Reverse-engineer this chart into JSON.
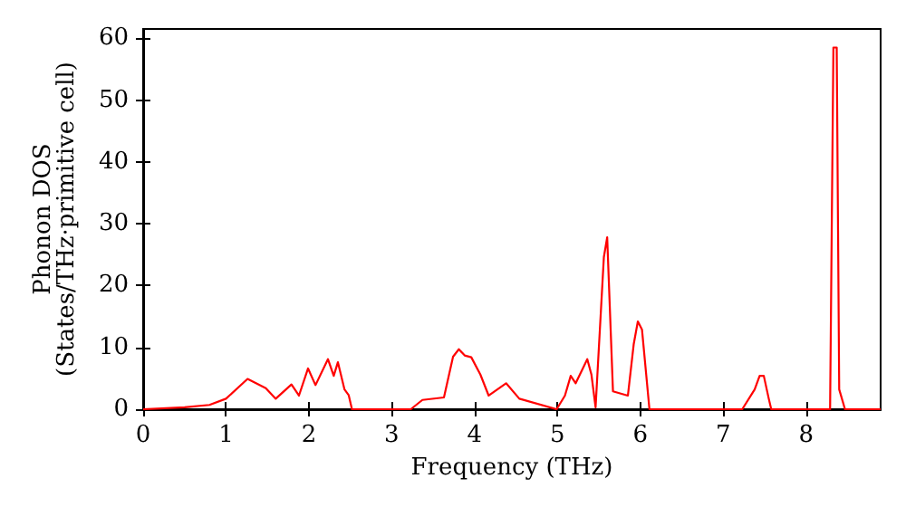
{
  "chart_data": {
    "type": "line",
    "xlabel": "Frequency (THz)",
    "ylabel": "Phonon DOS\n(States/THz·primitive cell)",
    "xlim": [
      0,
      8.9
    ],
    "xticks": [
      0,
      1,
      2,
      3,
      4,
      5,
      6,
      7,
      8
    ],
    "ylim": [
      0,
      61.5
    ],
    "yticks": [
      0,
      10,
      20,
      30,
      40,
      50,
      60
    ],
    "marker": "none",
    "line_style": "solid",
    "series": [
      {
        "color": "#ff0000",
        "x": [
          0,
          0.5,
          0.8,
          1.0,
          1.26,
          1.48,
          1.6,
          1.79,
          1.88,
          1.99,
          2.08,
          2.23,
          2.3,
          2.35,
          2.43,
          2.48,
          2.52,
          3.23,
          3.37,
          3.63,
          3.74,
          3.81,
          3.88,
          3.96,
          4.07,
          4.17,
          4.38,
          4.54,
          4.99,
          5.09,
          5.16,
          5.22,
          5.36,
          5.41,
          5.46,
          5.56,
          5.6,
          5.67,
          5.85,
          5.92,
          5.97,
          6.02,
          6.11,
          7.23,
          7.38,
          7.44,
          7.49,
          7.55,
          7.58,
          8.29,
          8.33,
          8.37,
          8.4,
          8.47,
          8.9
        ],
        "values": [
          0,
          0.3,
          0.7,
          1.7,
          4.9,
          3.4,
          1.7,
          4.0,
          2.2,
          6.6,
          3.9,
          8.1,
          5.4,
          7.6,
          3.2,
          2.3,
          0,
          0,
          1.5,
          1.9,
          8.5,
          9.7,
          8.7,
          8.4,
          5.6,
          2.2,
          4.2,
          1.7,
          0,
          2.2,
          5.4,
          4.2,
          8.1,
          5.6,
          0.3,
          24.6,
          27.8,
          2.9,
          2.2,
          10.5,
          14.2,
          12.9,
          0,
          0,
          3.2,
          5.4,
          5.4,
          1.7,
          0,
          0,
          58.5,
          58.5,
          3.2,
          0,
          0
        ]
      }
    ]
  }
}
